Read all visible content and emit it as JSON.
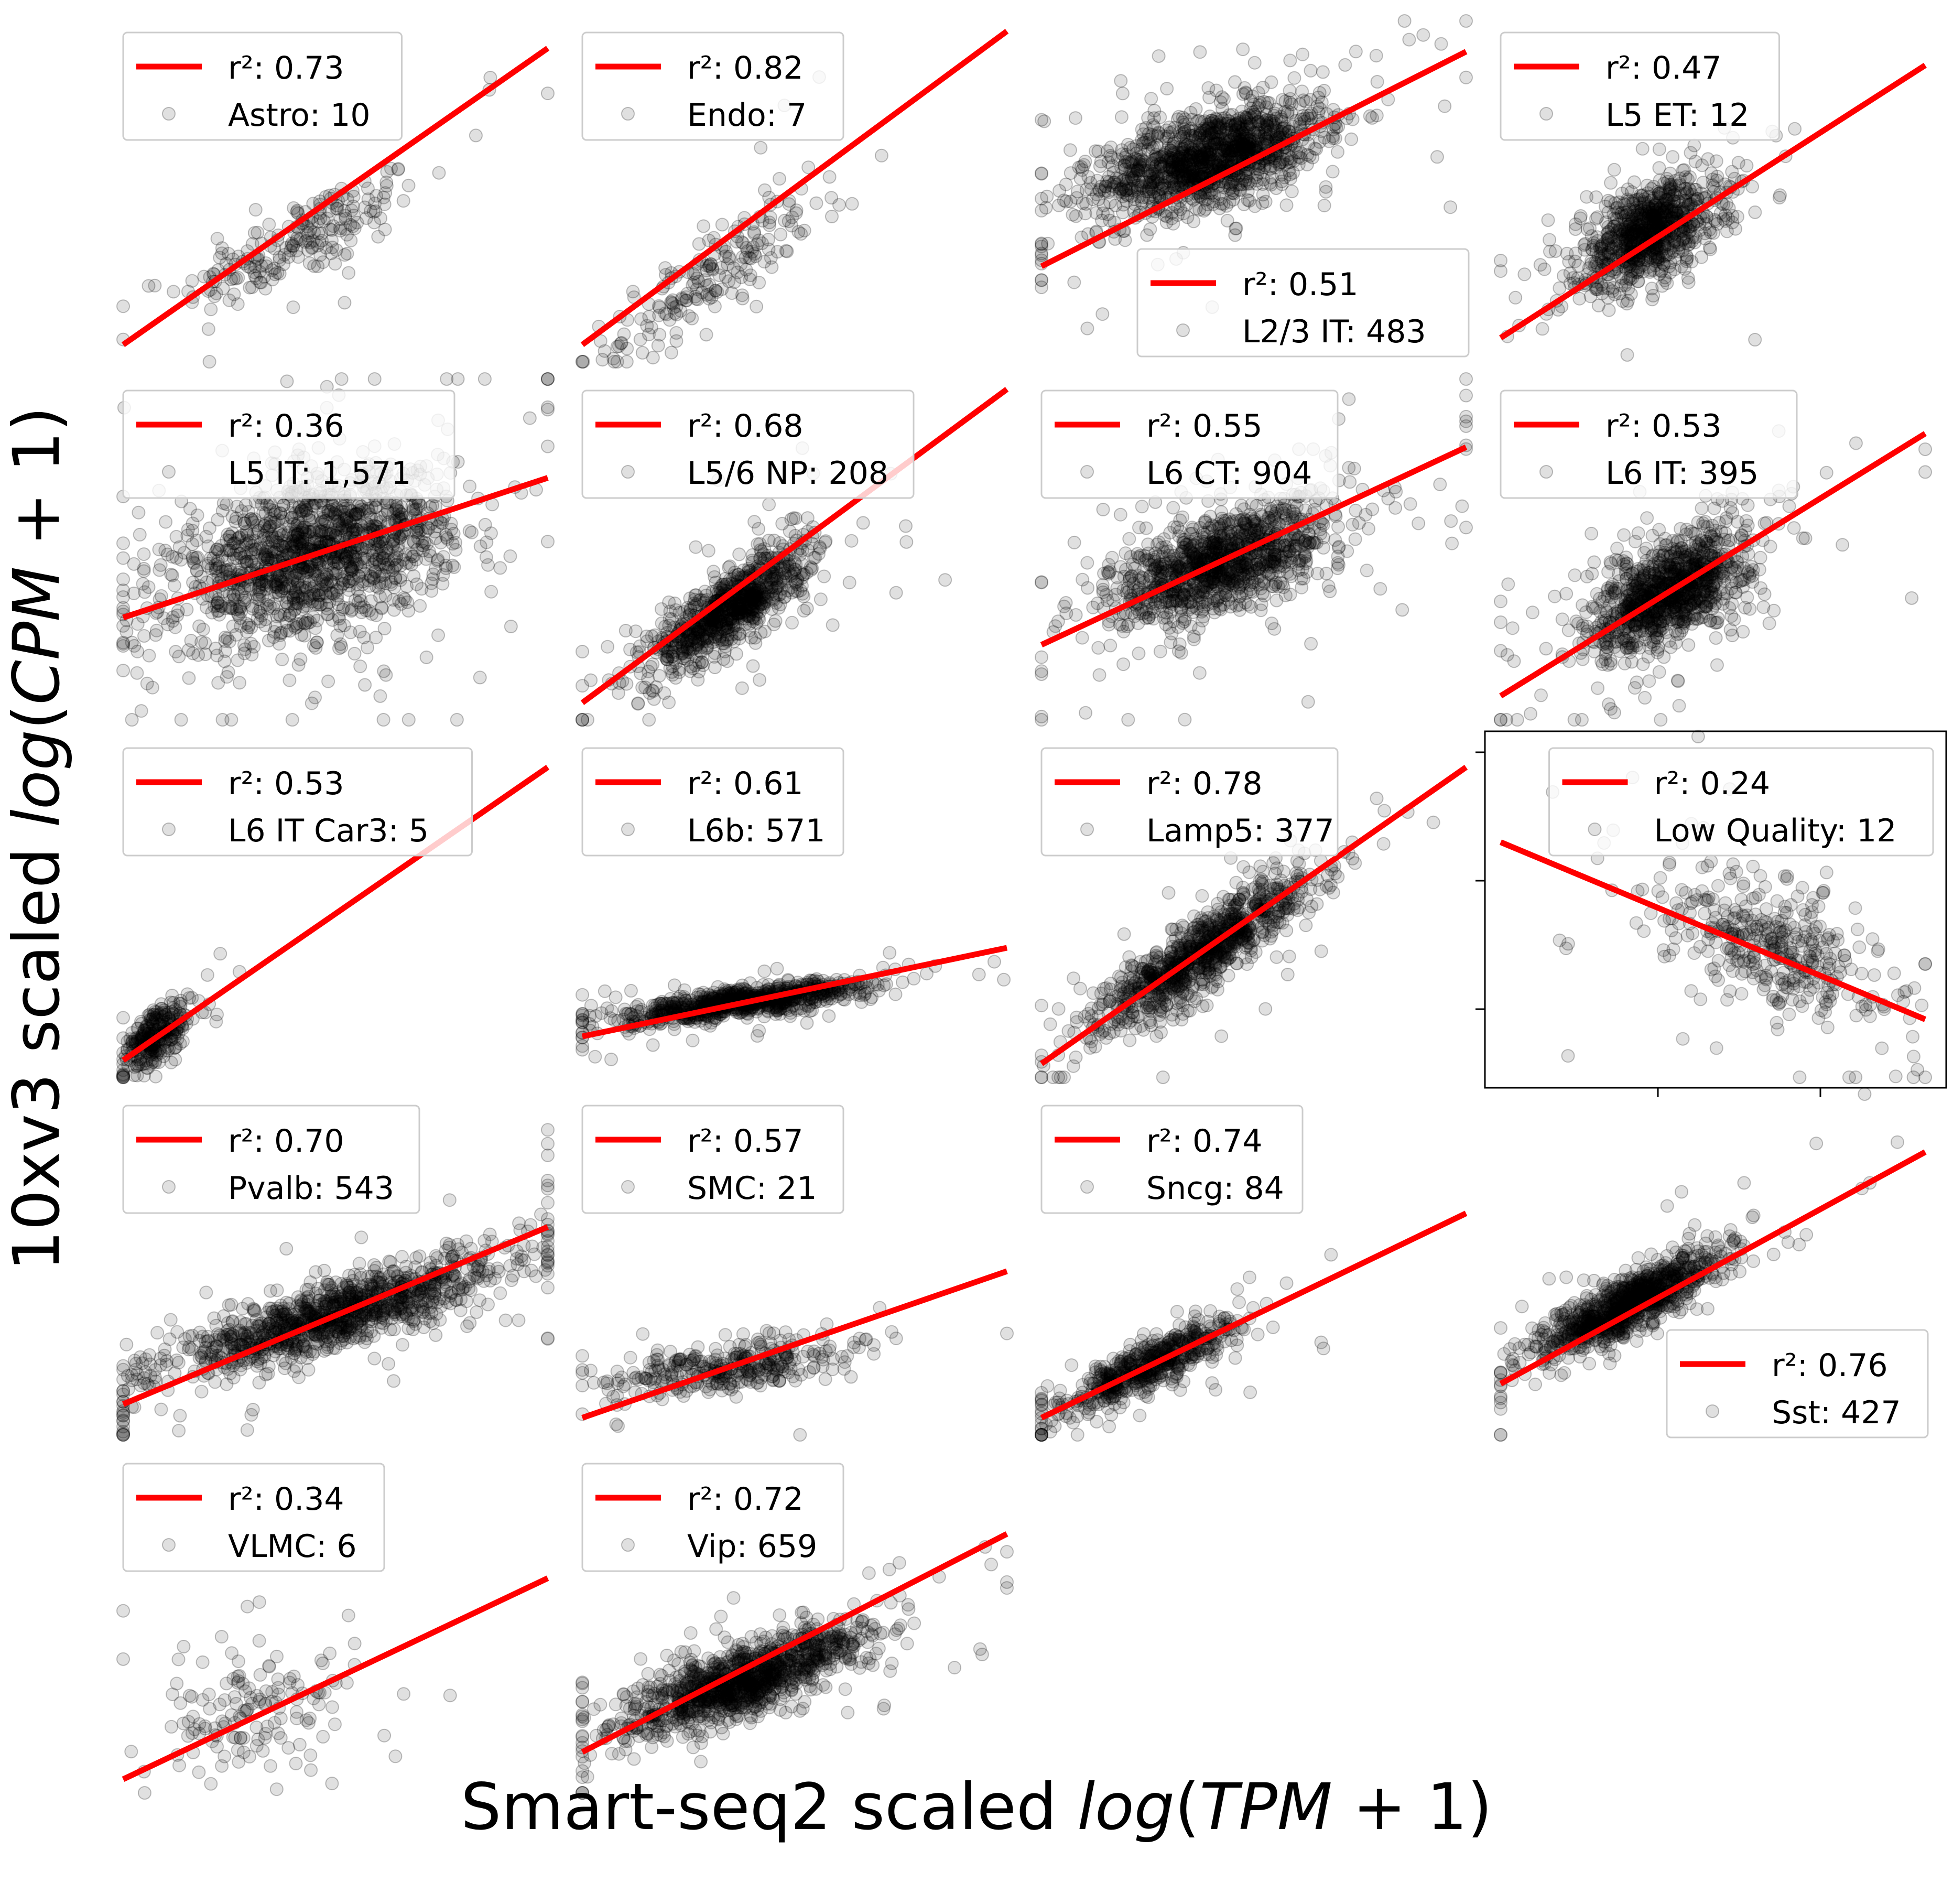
{
  "figure": {
    "xlabel": {
      "pre": "Smart-seq2 scaled ",
      "math": "log",
      "open": "(",
      "var": "TPM",
      "rest": " + 1)"
    },
    "ylabel": {
      "pre": "10xv3 scaled ",
      "math": "log",
      "open": "(",
      "var": "CPM",
      "rest": " + 1)"
    }
  },
  "colors": {
    "fit_line": "#ff0000",
    "points": "#000000",
    "legend_border": "#cccccc"
  },
  "chart_data": [
    {
      "type": "scatter",
      "label": "Astro: 10",
      "r2_label": "r²: 0.73",
      "r2": 0.73,
      "n": 10,
      "legend": "top-left",
      "fit_line": {
        "x": [
          0.0,
          1.0
        ],
        "y": [
          0.05,
          0.92
        ]
      },
      "cloud": {
        "cx": 0.42,
        "cy": 0.36,
        "sx": 0.14,
        "sy": 0.1,
        "rho": 0.8,
        "count": 220
      }
    },
    {
      "type": "scatter",
      "label": "Endo: 7",
      "r2_label": "r²: 0.82",
      "r2": 0.82,
      "n": 7,
      "legend": "top-left",
      "fit_line": {
        "x": [
          0.0,
          1.0
        ],
        "y": [
          0.05,
          0.97
        ]
      },
      "cloud": {
        "cx": 0.3,
        "cy": 0.25,
        "sx": 0.12,
        "sy": 0.12,
        "rho": 0.85,
        "count": 200
      }
    },
    {
      "type": "scatter",
      "label": "L2/3 IT: 483",
      "r2_label": "r²: 0.51",
      "r2": 0.51,
      "n": 483,
      "legend": "lower-right",
      "fit_line": {
        "x": [
          0.0,
          1.0
        ],
        "y": [
          0.28,
          0.91
        ]
      },
      "cloud": {
        "cx": 0.4,
        "cy": 0.6,
        "sx": 0.13,
        "sy": 0.08,
        "rho": 0.55,
        "count": 1400
      }
    },
    {
      "type": "scatter",
      "label": "L5 ET: 12",
      "r2_label": "r²: 0.47",
      "r2": 0.47,
      "n": 12,
      "legend": "top-left",
      "fit_line": {
        "x": [
          0.0,
          1.0
        ],
        "y": [
          0.07,
          0.87
        ]
      },
      "cloud": {
        "cx": 0.35,
        "cy": 0.38,
        "sx": 0.08,
        "sy": 0.08,
        "rho": 0.5,
        "count": 900
      }
    },
    {
      "type": "scatter",
      "label": "L5 IT: 1,571",
      "r2_label": "r²: 0.36",
      "r2": 0.36,
      "n": 1571,
      "legend": "top-left",
      "fit_line": {
        "x": [
          0.0,
          1.0
        ],
        "y": [
          0.3,
          0.71
        ]
      },
      "cloud": {
        "cx": 0.45,
        "cy": 0.48,
        "sx": 0.16,
        "sy": 0.12,
        "rho": 0.4,
        "count": 1500
      }
    },
    {
      "type": "scatter",
      "label": "L5/6 NP: 208",
      "r2_label": "r²: 0.68",
      "r2": 0.68,
      "n": 208,
      "legend": "top-left",
      "fit_line": {
        "x": [
          0.0,
          1.0
        ],
        "y": [
          0.05,
          0.97
        ]
      },
      "cloud": {
        "cx": 0.35,
        "cy": 0.33,
        "sx": 0.09,
        "sy": 0.09,
        "rho": 0.8,
        "count": 900
      }
    },
    {
      "type": "scatter",
      "label": "L6 CT: 904",
      "r2_label": "r²: 0.55",
      "r2": 0.55,
      "n": 904,
      "legend": "top-left",
      "fit_line": {
        "x": [
          0.0,
          1.0
        ],
        "y": [
          0.22,
          0.8
        ]
      },
      "cloud": {
        "cx": 0.42,
        "cy": 0.46,
        "sx": 0.13,
        "sy": 0.09,
        "rho": 0.6,
        "count": 1200
      }
    },
    {
      "type": "scatter",
      "label": "L6 IT: 395",
      "r2_label": "r²: 0.53",
      "r2": 0.53,
      "n": 395,
      "legend": "top-left",
      "fit_line": {
        "x": [
          0.0,
          1.0
        ],
        "y": [
          0.07,
          0.84
        ]
      },
      "cloud": {
        "cx": 0.4,
        "cy": 0.38,
        "sx": 0.09,
        "sy": 0.09,
        "rho": 0.6,
        "count": 1100
      }
    },
    {
      "type": "scatter",
      "label": "L6 IT Car3: 5",
      "r2_label": "r²: 0.53",
      "r2": 0.53,
      "n": 5,
      "legend": "top-left",
      "fit_line": {
        "x": [
          0.0,
          1.0
        ],
        "y": [
          0.05,
          0.91
        ]
      },
      "cloud": {
        "cx": 0.08,
        "cy": 0.12,
        "sx": 0.04,
        "sy": 0.05,
        "rho": 0.6,
        "count": 300
      }
    },
    {
      "type": "scatter",
      "label": "L6b: 571",
      "r2_label": "r²: 0.61",
      "r2": 0.61,
      "n": 571,
      "legend": "top-left",
      "fit_line": {
        "x": [
          0.0,
          1.0
        ],
        "y": [
          0.12,
          0.38
        ]
      },
      "cloud": {
        "cx": 0.38,
        "cy": 0.22,
        "sx": 0.14,
        "sy": 0.03,
        "rho": 0.75,
        "count": 900
      }
    },
    {
      "type": "scatter",
      "label": "Lamp5: 377",
      "r2_label": "r²: 0.78",
      "r2": 0.78,
      "n": 377,
      "legend": "top-left",
      "fit_line": {
        "x": [
          0.0,
          1.0
        ],
        "y": [
          0.04,
          0.91
        ]
      },
      "cloud": {
        "cx": 0.38,
        "cy": 0.37,
        "sx": 0.12,
        "sy": 0.11,
        "rho": 0.88,
        "count": 1000
      }
    },
    {
      "type": "scatter",
      "label": "Low Quality: 12",
      "r2_label": "r²: 0.24",
      "r2": 0.24,
      "n": 12,
      "legend": "top-right",
      "fit_line": {
        "x": [
          0.0,
          1.0
        ],
        "y": [
          0.69,
          0.17
        ]
      },
      "cloud": {
        "cx": 0.65,
        "cy": 0.38,
        "sx": 0.13,
        "sy": 0.11,
        "rho": -0.5,
        "count": 400
      }
    },
    {
      "type": "scatter",
      "label": "Pvalb: 543",
      "r2_label": "r²: 0.70",
      "r2": 0.7,
      "n": 543,
      "legend": "top-left",
      "fit_line": {
        "x": [
          0.0,
          1.0
        ],
        "y": [
          0.09,
          0.61
        ]
      },
      "cloud": {
        "cx": 0.5,
        "cy": 0.35,
        "sx": 0.2,
        "sy": 0.09,
        "rho": 0.85,
        "count": 1200
      }
    },
    {
      "type": "scatter",
      "label": "SMC: 21",
      "r2_label": "r²: 0.57",
      "r2": 0.57,
      "n": 21,
      "legend": "top-left",
      "fit_line": {
        "x": [
          0.0,
          1.0
        ],
        "y": [
          0.05,
          0.48
        ]
      },
      "cloud": {
        "cx": 0.35,
        "cy": 0.2,
        "sx": 0.14,
        "sy": 0.04,
        "rho": 0.5,
        "count": 350
      }
    },
    {
      "type": "scatter",
      "label": "Sncg: 84",
      "r2_label": "r²: 0.74",
      "r2": 0.74,
      "n": 84,
      "legend": "top-left",
      "fit_line": {
        "x": [
          0.0,
          1.0
        ],
        "y": [
          0.05,
          0.65
        ]
      },
      "cloud": {
        "cx": 0.25,
        "cy": 0.2,
        "sx": 0.1,
        "sy": 0.07,
        "rho": 0.85,
        "count": 600
      }
    },
    {
      "type": "scatter",
      "label": "Sst: 427",
      "r2_label": "r²: 0.76",
      "r2": 0.76,
      "n": 427,
      "legend": "lower-right",
      "fit_line": {
        "x": [
          0.0,
          1.0
        ],
        "y": [
          0.15,
          0.83
        ]
      },
      "cloud": {
        "cx": 0.3,
        "cy": 0.38,
        "sx": 0.11,
        "sy": 0.08,
        "rho": 0.85,
        "count": 1000
      }
    },
    {
      "type": "scatter",
      "label": "VLMC: 6",
      "r2_label": "r²: 0.34",
      "r2": 0.34,
      "n": 6,
      "legend": "top-left",
      "fit_line": {
        "x": [
          0.0,
          1.0
        ],
        "y": [
          0.04,
          0.63
        ]
      },
      "cloud": {
        "cx": 0.32,
        "cy": 0.25,
        "sx": 0.13,
        "sy": 0.1,
        "rho": 0.4,
        "count": 150
      }
    },
    {
      "type": "scatter",
      "label": "Vip: 659",
      "r2_label": "r²: 0.72",
      "r2": 0.72,
      "n": 659,
      "legend": "top-left",
      "fit_line": {
        "x": [
          0.0,
          1.0
        ],
        "y": [
          0.12,
          0.76
        ]
      },
      "cloud": {
        "cx": 0.38,
        "cy": 0.33,
        "sx": 0.14,
        "sy": 0.08,
        "rho": 0.8,
        "count": 1200
      }
    }
  ]
}
